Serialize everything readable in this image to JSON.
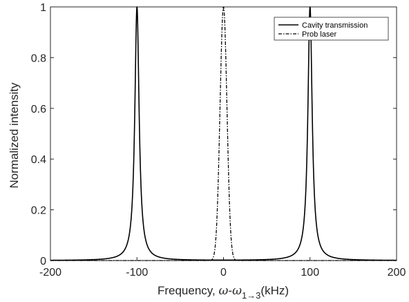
{
  "chart_data": {
    "type": "line",
    "xlabel_prefix": "Frequency, ",
    "xlabel_omega": "ω-ω",
    "xlabel_sub": "1→3",
    "xlabel_unit": "(kHz)",
    "ylabel": "Normalized intensity",
    "xlim": [
      -200,
      200
    ],
    "ylim": [
      0,
      1
    ],
    "x_ticks": [
      "-200",
      "-100",
      "0",
      "100",
      "200"
    ],
    "y_ticks": [
      "0",
      "0.2",
      "0.4",
      "0.6",
      "0.8",
      "1"
    ],
    "grid": false,
    "legend_position": "top-right",
    "series": [
      {
        "name": "Cavity transmission",
        "style": "solid",
        "color": "#000000",
        "shape": "lorentzian",
        "peaks": [
          -100,
          100
        ],
        "amplitude": 1,
        "half_width_khz": 3
      },
      {
        "name": "Prob laser",
        "style": "dash-dot",
        "color": "#000000",
        "shape": "gaussian",
        "peaks": [
          0
        ],
        "amplitude": 1,
        "sigma_khz": 4
      }
    ]
  }
}
